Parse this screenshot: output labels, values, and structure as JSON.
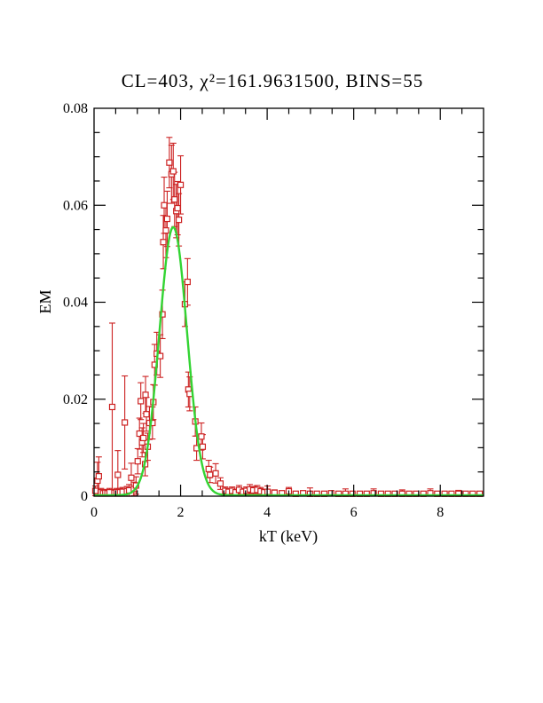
{
  "page": {
    "background": "#ffffff"
  },
  "chart_data": {
    "type": "scatter",
    "title": "CL=403, χ²=161.9631500, BINS=55",
    "xlabel": "kT (keV)",
    "ylabel": "EM",
    "xlim": [
      0,
      9
    ],
    "ylim": [
      0,
      0.08
    ],
    "x_major_ticks": [
      0,
      2,
      4,
      6,
      8
    ],
    "x_tick_labels": [
      "0",
      "2",
      "4",
      "6",
      "8"
    ],
    "x_minor_step": 0.5,
    "y_major_ticks": [
      0,
      0.02,
      0.04,
      0.06,
      0.08
    ],
    "y_tick_labels": [
      "0",
      "0.02",
      "0.04",
      "0.06",
      "0.08"
    ],
    "y_minor_step": 0.005,
    "grid": false,
    "legend": "none",
    "colors": {
      "data": "#cc2222",
      "model_curve": "#33d433",
      "axis": "#000000",
      "title": "#cc2222",
      "background": "#ffffff"
    },
    "model_curve": {
      "shape": "gaussian",
      "center": 1.83,
      "sigma": 0.32,
      "amplitude": 0.0553,
      "baseline": 0.0002,
      "description": "green best-fit gaussian over full x range"
    },
    "points_format": [
      "kT_keV",
      "EM",
      "err"
    ],
    "points": [
      [
        0.03,
        0.0011,
        0.001
      ],
      [
        0.08,
        0.0032,
        0.0038
      ],
      [
        0.11,
        0.0041,
        0.004
      ],
      [
        0.16,
        0.0008,
        0.0008
      ],
      [
        0.21,
        0.0006,
        0.0006
      ],
      [
        0.26,
        0.0007,
        0.0007
      ],
      [
        0.31,
        0.0006,
        0.0006
      ],
      [
        0.36,
        0.0008,
        0.0008
      ],
      [
        0.42,
        0.0184,
        0.0173
      ],
      [
        0.47,
        0.0007,
        0.0007
      ],
      [
        0.52,
        0.0008,
        0.0008
      ],
      [
        0.55,
        0.0044,
        0.005
      ],
      [
        0.6,
        0.0008,
        0.0008
      ],
      [
        0.66,
        0.0009,
        0.0009
      ],
      [
        0.71,
        0.0152,
        0.0096
      ],
      [
        0.76,
        0.001,
        0.001
      ],
      [
        0.81,
        0.0012,
        0.0012
      ],
      [
        0.86,
        0.0038,
        0.003
      ],
      [
        0.92,
        0.0015,
        0.0014
      ],
      [
        0.97,
        0.0022,
        0.0018
      ],
      [
        1.01,
        0.0072,
        0.0026
      ],
      [
        1.05,
        0.0129,
        0.0032
      ],
      [
        1.08,
        0.0196,
        0.0038
      ],
      [
        1.11,
        0.0111,
        0.003
      ],
      [
        1.14,
        0.012,
        0.003
      ],
      [
        1.18,
        0.0066,
        0.0024
      ],
      [
        1.19,
        0.0209,
        0.0038
      ],
      [
        1.21,
        0.0169,
        0.0035
      ],
      [
        1.24,
        0.0102,
        0.0028
      ],
      [
        1.28,
        0.0151,
        0.0034
      ],
      [
        1.35,
        0.0151,
        0.0033
      ],
      [
        1.37,
        0.0194,
        0.0036
      ],
      [
        1.4,
        0.0271,
        0.0042
      ],
      [
        1.45,
        0.0294,
        0.0044
      ],
      [
        1.53,
        0.0289,
        0.0044
      ],
      [
        1.58,
        0.0375,
        0.005
      ],
      [
        1.6,
        0.0524,
        0.0055
      ],
      [
        1.62,
        0.06,
        0.0058
      ],
      [
        1.66,
        0.0548,
        0.0056
      ],
      [
        1.69,
        0.0572,
        0.0057
      ],
      [
        1.74,
        0.0688,
        0.0052
      ],
      [
        1.79,
        0.0664,
        0.006
      ],
      [
        1.83,
        0.067,
        0.0058
      ],
      [
        1.86,
        0.0612,
        0.0056
      ],
      [
        1.9,
        0.0588,
        0.0055
      ],
      [
        1.93,
        0.0594,
        0.0055
      ],
      [
        1.96,
        0.057,
        0.0054
      ],
      [
        2.0,
        0.0642,
        0.006
      ],
      [
        2.1,
        0.0396,
        0.0046
      ],
      [
        2.16,
        0.0442,
        0.0048
      ],
      [
        2.18,
        0.022,
        0.0036
      ],
      [
        2.21,
        0.0211,
        0.0035
      ],
      [
        2.34,
        0.0154,
        0.003
      ],
      [
        2.37,
        0.0099,
        0.0025
      ],
      [
        2.48,
        0.0123,
        0.0028
      ],
      [
        2.51,
        0.0102,
        0.0025
      ],
      [
        2.65,
        0.0056,
        0.0018
      ],
      [
        2.68,
        0.0044,
        0.0016
      ],
      [
        2.81,
        0.0047,
        0.002
      ],
      [
        2.92,
        0.0026,
        0.0012
      ],
      [
        3.03,
        0.0011,
        0.0008
      ],
      [
        3.11,
        0.0009,
        0.0007
      ],
      [
        3.19,
        0.0011,
        0.0008
      ],
      [
        3.27,
        0.0008,
        0.0006
      ],
      [
        3.35,
        0.0013,
        0.0009
      ],
      [
        3.44,
        0.0009,
        0.0007
      ],
      [
        3.52,
        0.0011,
        0.0008
      ],
      [
        3.6,
        0.0014,
        0.001
      ],
      [
        3.68,
        0.0012,
        0.0008
      ],
      [
        3.77,
        0.0013,
        0.0009
      ],
      [
        3.85,
        0.001,
        0.0008
      ],
      [
        3.93,
        0.0008,
        0.0006
      ],
      [
        4.01,
        0.0009,
        0.0012
      ],
      [
        4.17,
        0.0007,
        0.0006
      ],
      [
        4.34,
        0.0006,
        0.0005
      ],
      [
        4.5,
        0.001,
        0.0008
      ],
      [
        4.66,
        0.0005,
        0.0004
      ],
      [
        4.83,
        0.0006,
        0.0005
      ],
      [
        4.99,
        0.0005,
        0.0012
      ],
      [
        5.15,
        0.0005,
        0.0004
      ],
      [
        5.32,
        0.0005,
        0.0004
      ],
      [
        5.48,
        0.0006,
        0.0005
      ],
      [
        5.65,
        0.0005,
        0.0004
      ],
      [
        5.81,
        0.0005,
        0.001
      ],
      [
        5.97,
        0.0005,
        0.0004
      ],
      [
        6.14,
        0.0005,
        0.0004
      ],
      [
        6.3,
        0.0005,
        0.0004
      ],
      [
        6.46,
        0.0006,
        0.0009
      ],
      [
        6.63,
        0.0005,
        0.0004
      ],
      [
        6.79,
        0.0005,
        0.0004
      ],
      [
        6.95,
        0.0005,
        0.0004
      ],
      [
        7.12,
        0.0005,
        0.0008
      ],
      [
        7.28,
        0.0005,
        0.0004
      ],
      [
        7.44,
        0.0005,
        0.0004
      ],
      [
        7.61,
        0.0005,
        0.0004
      ],
      [
        7.77,
        0.0006,
        0.0009
      ],
      [
        7.93,
        0.0005,
        0.0004
      ],
      [
        8.1,
        0.0005,
        0.0004
      ],
      [
        8.26,
        0.0005,
        0.0004
      ],
      [
        8.42,
        0.0005,
        0.0007
      ],
      [
        8.59,
        0.0005,
        0.0004
      ],
      [
        8.75,
        0.0005,
        0.0004
      ],
      [
        8.91,
        0.0005,
        0.0004
      ]
    ]
  }
}
